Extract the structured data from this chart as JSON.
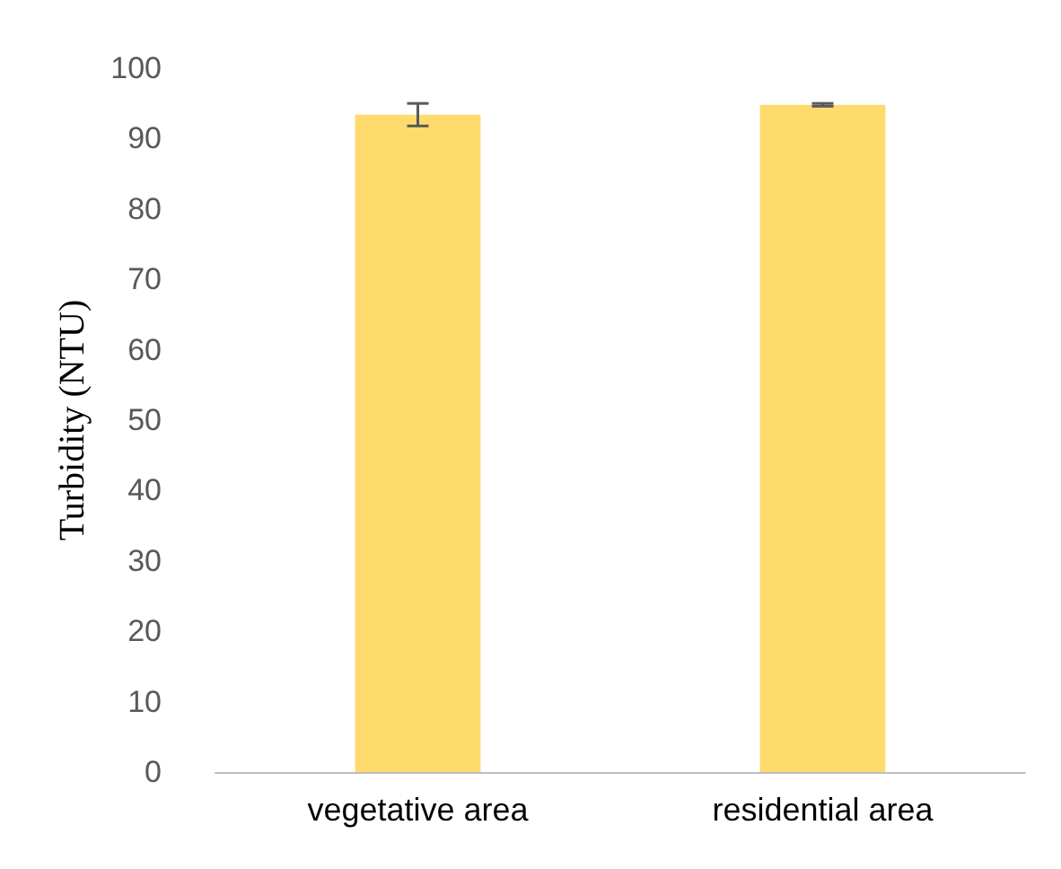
{
  "chart_data": {
    "type": "bar",
    "ylabel": "Turbidity (NTU)",
    "categories": [
      "vegetative area",
      "residential area"
    ],
    "values": [
      93.4,
      94.8
    ],
    "errors": [
      1.6,
      0.2
    ],
    "color": "#ffd966",
    "ylim": [
      0,
      100
    ],
    "yticks": [
      0,
      10,
      20,
      30,
      40,
      50,
      60,
      70,
      80,
      90,
      100
    ],
    "grid": false
  }
}
